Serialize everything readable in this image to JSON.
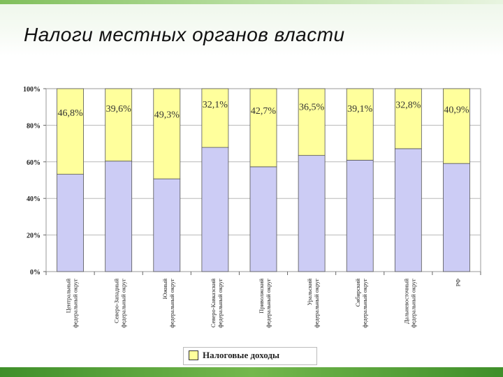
{
  "slide": {
    "title": "Налоги местных органов власти"
  },
  "legend": {
    "label": "Налоговые доходы",
    "color": "#ffff9c"
  },
  "colors": {
    "tax_revenue": "#ffff9c",
    "other": "#ccccf5",
    "header_accent": "#74b84d"
  },
  "chart_data": {
    "type": "bar",
    "stacked": true,
    "percent": true,
    "categories": [
      "Центральный федеральный округ",
      "Северо-Западный федеральный округ",
      "Южный федеральный округ",
      "Северо-Кавказский федеральный округ",
      "Приволжский федеральный округ",
      "Уральский федеральный округ",
      "Сибирский федеральный округ",
      "Дальневосточный федеральный округ",
      "РФ"
    ],
    "series": [
      {
        "name": "",
        "values": [
          53.2,
          60.4,
          50.7,
          67.9,
          57.3,
          63.5,
          60.9,
          67.2,
          59.1
        ],
        "color": "#ccccf5"
      },
      {
        "name": "Налоговые доходы",
        "values": [
          46.8,
          39.6,
          49.3,
          32.1,
          42.7,
          36.5,
          39.1,
          32.8,
          40.9
        ],
        "color": "#ffff9c"
      }
    ],
    "data_labels": [
      "46,8%",
      "39,6%",
      "49,3%",
      "32,1%",
      "42,7%",
      "36,5%",
      "39,1%",
      "32,8%",
      "40,9%"
    ],
    "y_ticks": [
      "0%",
      "20%",
      "40%",
      "60%",
      "80%",
      "100%"
    ],
    "ylim": [
      0,
      100
    ],
    "grid": true,
    "legend_position": "bottom"
  }
}
